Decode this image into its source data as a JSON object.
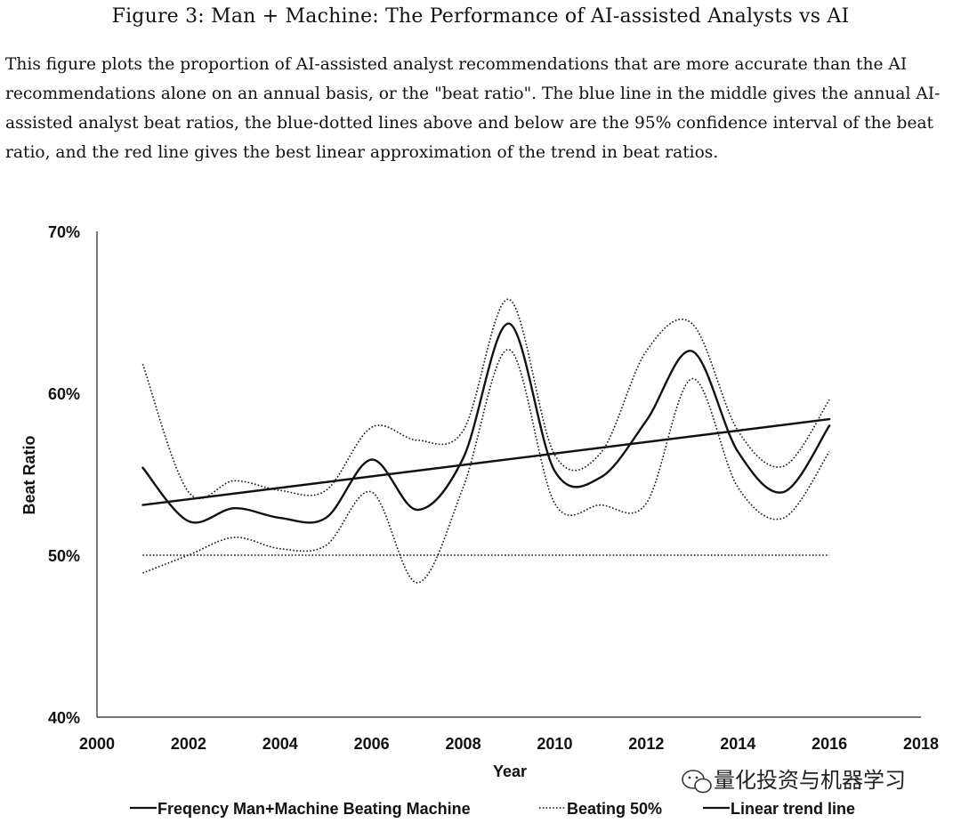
{
  "figure_title": "Figure 3: Man + Machine: The Performance of AI-assisted Analysts vs AI",
  "caption": "This figure plots the proportion of AI-assisted analyst recommendations that are more accurate than the AI recommendations alone on an annual basis, or the \"beat ratio\". The blue line in the middle gives the annual AI-assisted analyst beat ratios, the blue-dotted lines above and below are the 95% confidence interval of the beat ratio, and the red line gives the best linear approximation of the trend in beat ratios.",
  "watermark": "量化投资与机器学习",
  "chart_data": {
    "type": "line",
    "title": "",
    "xlabel": "Year",
    "ylabel": "Beat Ratio",
    "xlim": [
      2000,
      2018
    ],
    "ylim": [
      40,
      70
    ],
    "x_ticks": [
      "2000",
      "2002",
      "2004",
      "2006",
      "2008",
      "2010",
      "2012",
      "2014",
      "2016",
      "2018"
    ],
    "y_ticks": [
      "40%",
      "50%",
      "60%",
      "70%"
    ],
    "grid": false,
    "legend_position": "bottom",
    "x": [
      2001,
      2002,
      2003,
      2004,
      2005,
      2006,
      2007,
      2008,
      2009,
      2010,
      2011,
      2012,
      2013,
      2014,
      2015,
      2016
    ],
    "series": [
      {
        "name": "Freqency Man+Machine Beating Machine",
        "style": "solid",
        "role": "main",
        "values": [
          55.4,
          52.1,
          52.9,
          52.3,
          52.3,
          55.9,
          52.8,
          56.0,
          64.3,
          55.2,
          54.8,
          58.3,
          62.6,
          56.4,
          53.9,
          58.0
        ]
      },
      {
        "name": "",
        "style": "dotted",
        "role": "upper-ci",
        "values": [
          61.8,
          53.9,
          54.6,
          54.0,
          54.0,
          57.9,
          57.1,
          57.7,
          65.8,
          56.2,
          56.3,
          62.6,
          64.3,
          57.7,
          55.5,
          59.6
        ]
      },
      {
        "name": "",
        "style": "dotted",
        "role": "lower-ci",
        "values": [
          48.9,
          50.0,
          51.1,
          50.4,
          50.6,
          53.9,
          48.3,
          54.2,
          62.7,
          53.2,
          53.1,
          53.2,
          60.9,
          54.2,
          52.3,
          56.4
        ]
      },
      {
        "name": "Beating 50%",
        "style": "dotted",
        "role": "reference",
        "x": [
          2001,
          2016
        ],
        "values": [
          50.0,
          50.0
        ]
      },
      {
        "name": "Linear trend line",
        "style": "solid",
        "role": "trend",
        "x": [
          2001,
          2016
        ],
        "values": [
          53.1,
          58.4
        ]
      }
    ]
  }
}
